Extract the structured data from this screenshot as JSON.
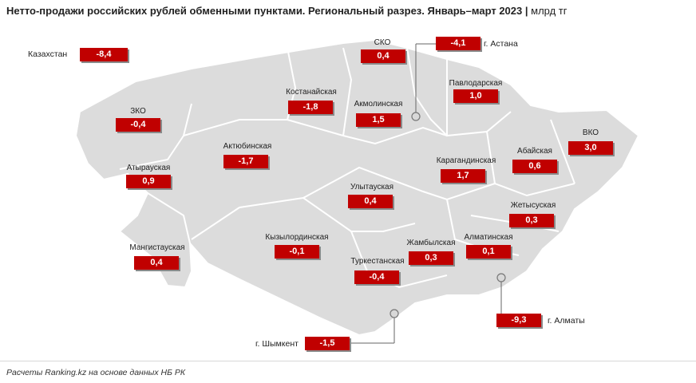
{
  "title": "Нетто-продажи российских рублей обменными пунктами. Региональный разрез. Январь–март 2023",
  "unit": "млрд тг",
  "source": "Расчеты Ranking.kz на основе данных НБ РК",
  "colors": {
    "map_fill": "#dcdcdc",
    "map_border": "#ffffff",
    "badge": "#c00000",
    "badge_text": "#ffffff"
  },
  "total": {
    "name": "Казахстан",
    "value": "-8,4"
  },
  "regions": [
    {
      "name": "СКО",
      "value": "0,4"
    },
    {
      "name": "Павлодарская",
      "value": "1,0"
    },
    {
      "name": "Костанайская",
      "value": "-1,8"
    },
    {
      "name": "Акмолинская",
      "value": "1,5"
    },
    {
      "name": "ЗКО",
      "value": "-0,4"
    },
    {
      "name": "Актюбинская",
      "value": "-1,7"
    },
    {
      "name": "ВКО",
      "value": "3,0"
    },
    {
      "name": "Абайская",
      "value": "0,6"
    },
    {
      "name": "Атырауская",
      "value": "0,9"
    },
    {
      "name": "Карагандинская",
      "value": "1,7"
    },
    {
      "name": "Улытауская",
      "value": "0,4"
    },
    {
      "name": "Жетысуская",
      "value": "0,3"
    },
    {
      "name": "Мангистауская",
      "value": "0,4"
    },
    {
      "name": "Кызылординская",
      "value": "-0,1"
    },
    {
      "name": "Жамбылская",
      "value": "0,3"
    },
    {
      "name": "Алматинская",
      "value": "0,1"
    },
    {
      "name": "Туркестанская",
      "value": "-0,4"
    }
  ],
  "cities": [
    {
      "name": "г. Астана",
      "value": "-4,1"
    },
    {
      "name": "г. Алматы",
      "value": "-9,3"
    },
    {
      "name": "г. Шымкент",
      "value": "-1,5"
    }
  ]
}
